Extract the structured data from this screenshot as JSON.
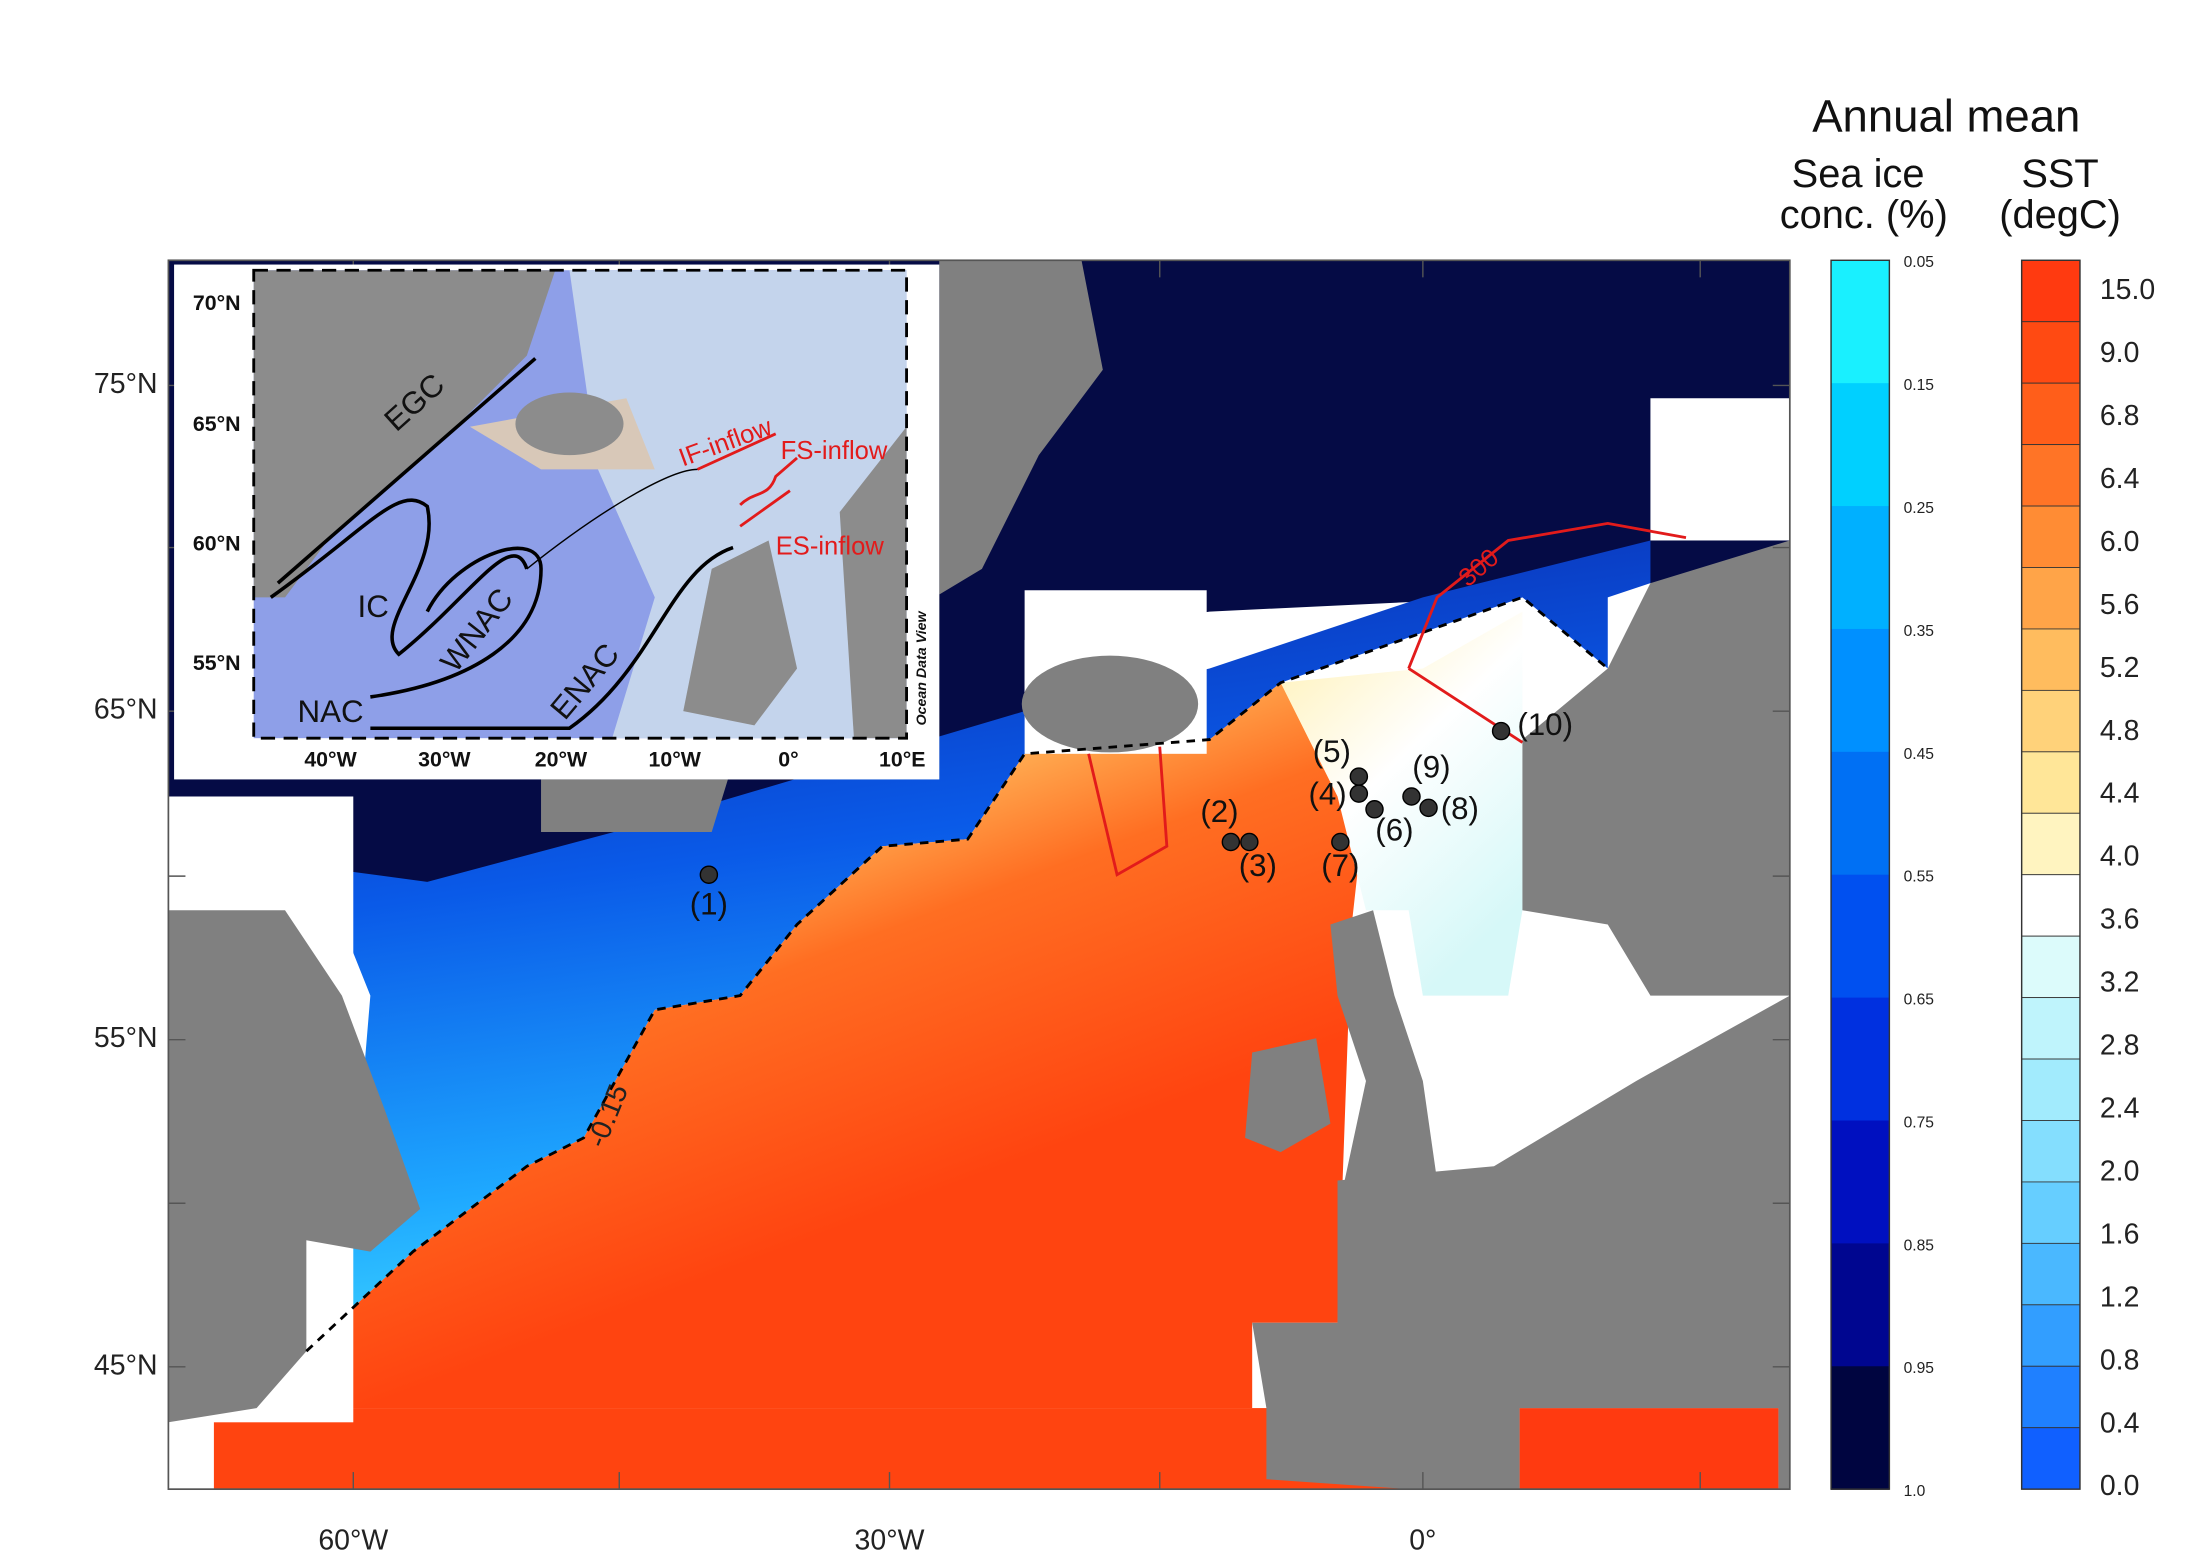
{
  "title": "Annual mean",
  "sea_ice_colorbar": {
    "title_lines": [
      "Sea ice",
      "conc. (%)"
    ],
    "ticks": [
      "0.05",
      "0.15",
      "0.25",
      "0.35",
      "0.45",
      "0.55",
      "0.65",
      "0.75",
      "0.85",
      "0.95",
      "1.0"
    ]
  },
  "sst_colorbar": {
    "title_lines": [
      "SST",
      "(degC)"
    ],
    "ticks": [
      "15.0",
      "9.0",
      "6.8",
      "6.4",
      "6.0",
      "5.6",
      "5.2",
      "4.8",
      "4.4",
      "4.0",
      "3.6",
      "3.2",
      "2.8",
      "2.4",
      "2.0",
      "1.6",
      "1.2",
      "0.8",
      "0.4",
      "0.0"
    ]
  },
  "map": {
    "lat_labels": [
      "75°N",
      "65°N",
      "55°N",
      "45°N"
    ],
    "lon_labels": [
      "60°W",
      "30°W",
      "0°"
    ],
    "contour_labels": [
      "-0.15",
      "300"
    ],
    "stations": [
      "(1)",
      "(2)",
      "(3)",
      "(4)",
      "(5)",
      "(6)",
      "(7)",
      "(8)",
      "(9)",
      "(10)"
    ]
  },
  "inset": {
    "lat_labels": [
      "70°N",
      "65°N",
      "60°N",
      "55°N"
    ],
    "lon_labels": [
      "40°W",
      "30°W",
      "20°W",
      "10°W",
      "0°",
      "10°E"
    ],
    "currents": [
      "EGC",
      "IC",
      "WNAC",
      "NAC",
      "ENAC"
    ],
    "inflows": [
      "IF-inflow",
      "FS-inflow",
      "ES-inflow"
    ],
    "credit": "Ocean Data View"
  }
}
